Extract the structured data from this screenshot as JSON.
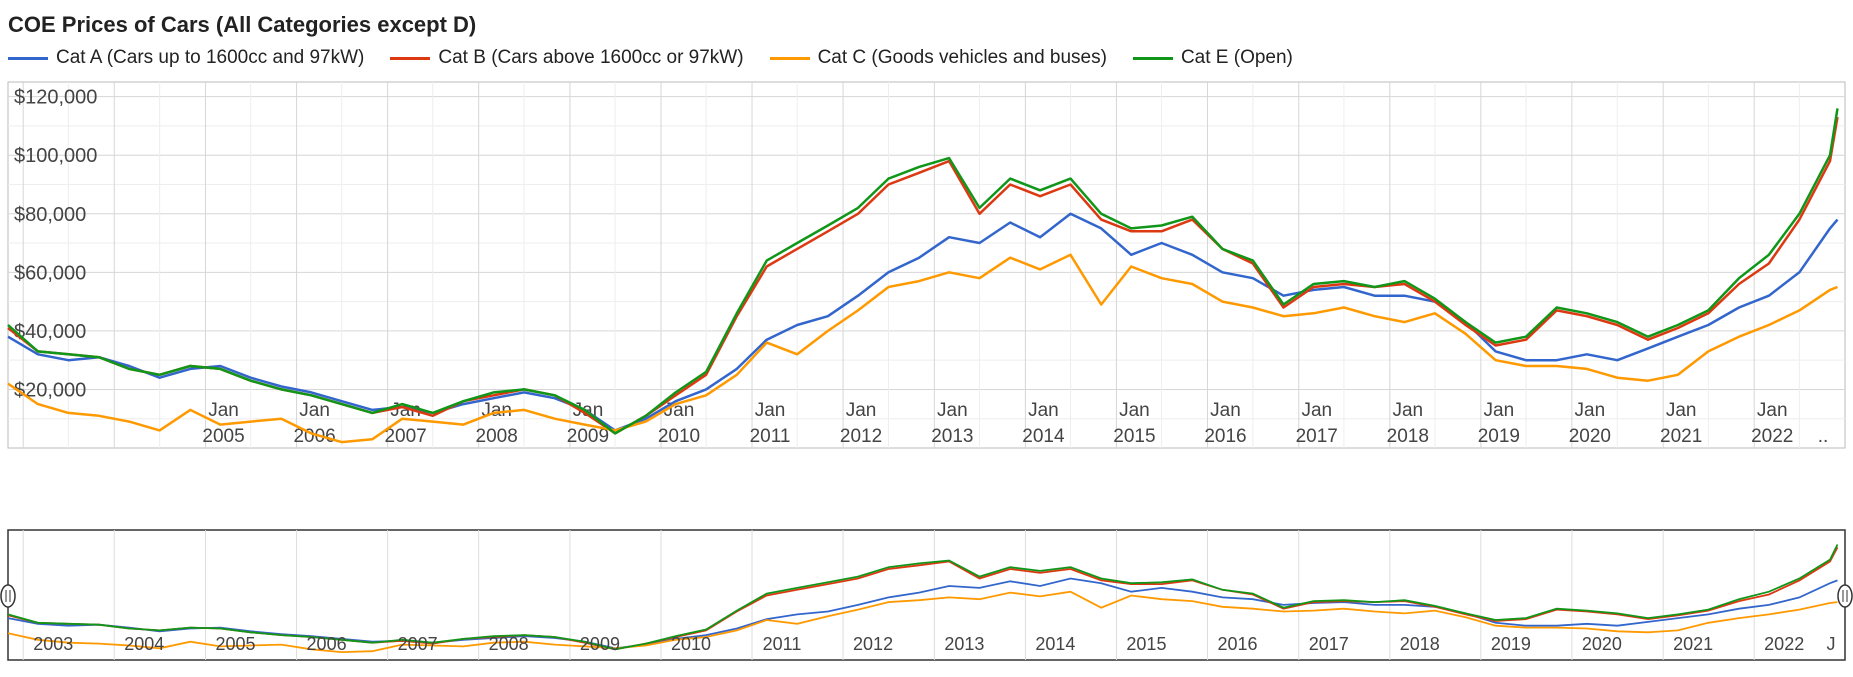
{
  "chart_data": {
    "type": "line",
    "title": "COE Prices of Cars (All Categories except D)",
    "xlabel": "",
    "ylabel": "",
    "x_range": [
      "2002-11",
      "2022-12"
    ],
    "ylim": [
      0,
      125000
    ],
    "y_ticks": [
      "$20,000",
      "$40,000",
      "$60,000",
      "$80,000",
      "$100,000",
      "$120,000"
    ],
    "y_tick_values": [
      20000,
      40000,
      60000,
      80000,
      100000,
      120000
    ],
    "x_tick_top": [
      "Jan",
      "Jan",
      "Jan",
      "Jan",
      "Jan",
      "Jan",
      "Jan",
      "Jan",
      "Jan",
      "Jan",
      "Jan",
      "Jan",
      "Jan",
      "Jan",
      "Jan",
      "Jan",
      "Jan",
      "Jan"
    ],
    "x_tick_years": [
      "2005",
      "2006",
      "2007",
      "2008",
      "2009",
      "2010",
      "2011",
      "2012",
      "2013",
      "2014",
      "2015",
      "2016",
      "2017",
      "2018",
      "2019",
      "2020",
      "2021",
      "2022",
      ".."
    ],
    "navigator_years": [
      "2003",
      "2004",
      "2005",
      "2006",
      "2007",
      "2008",
      "2009",
      "2010",
      "2011",
      "2012",
      "2013",
      "2014",
      "2015",
      "2016",
      "2017",
      "2018",
      "2019",
      "2020",
      "2021",
      "2022",
      "J"
    ],
    "grid": true,
    "legend_position": "top-left",
    "x": [
      "2002-11",
      "2003-03",
      "2003-07",
      "2003-11",
      "2004-03",
      "2004-07",
      "2004-11",
      "2005-03",
      "2005-07",
      "2005-11",
      "2006-03",
      "2006-07",
      "2006-11",
      "2007-03",
      "2007-07",
      "2007-11",
      "2008-03",
      "2008-07",
      "2008-11",
      "2009-03",
      "2009-07",
      "2009-11",
      "2010-03",
      "2010-07",
      "2010-11",
      "2011-03",
      "2011-07",
      "2011-11",
      "2012-03",
      "2012-07",
      "2012-11",
      "2013-03",
      "2013-07",
      "2013-11",
      "2014-03",
      "2014-07",
      "2014-11",
      "2015-03",
      "2015-07",
      "2015-11",
      "2016-03",
      "2016-07",
      "2016-11",
      "2017-03",
      "2017-07",
      "2017-11",
      "2018-03",
      "2018-07",
      "2018-11",
      "2019-03",
      "2019-07",
      "2019-11",
      "2020-03",
      "2020-07",
      "2020-11",
      "2021-03",
      "2021-07",
      "2021-11",
      "2022-03",
      "2022-07",
      "2022-11",
      "2022-12"
    ],
    "series": [
      {
        "name": "Cat A (Cars up to 1600cc and 97kW)",
        "color": "#3366cc",
        "values": [
          38000,
          32000,
          30000,
          31000,
          28000,
          24000,
          27000,
          28000,
          24000,
          21000,
          19000,
          16000,
          13000,
          14000,
          12000,
          15000,
          17000,
          19000,
          17000,
          13000,
          6000,
          10000,
          16000,
          20000,
          27000,
          37000,
          42000,
          45000,
          52000,
          60000,
          65000,
          72000,
          70000,
          77000,
          72000,
          80000,
          75000,
          66000,
          70000,
          66000,
          60000,
          58000,
          52000,
          54000,
          55000,
          52000,
          52000,
          50000,
          43000,
          33000,
          30000,
          30000,
          32000,
          30000,
          34000,
          38000,
          42000,
          48000,
          52000,
          60000,
          75000,
          78000
        ]
      },
      {
        "name": "Cat B (Cars above 1600cc or 97kW)",
        "color": "#dc3912",
        "values": [
          41000,
          33000,
          32000,
          31000,
          27000,
          25000,
          28000,
          27000,
          23000,
          20000,
          18000,
          15000,
          12000,
          14000,
          11000,
          16000,
          18000,
          20000,
          18000,
          12000,
          5000,
          11000,
          18000,
          25000,
          45000,
          62000,
          68000,
          74000,
          80000,
          90000,
          94000,
          98000,
          80000,
          90000,
          86000,
          90000,
          78000,
          74000,
          74000,
          78000,
          68000,
          63000,
          48000,
          55000,
          56000,
          55000,
          56000,
          50000,
          42000,
          35000,
          37000,
          47000,
          45000,
          42000,
          37000,
          41000,
          46000,
          56000,
          63000,
          78000,
          98000,
          113000
        ]
      },
      {
        "name": "Cat C (Goods vehicles and buses)",
        "color": "#ff9900",
        "values": [
          22000,
          15000,
          12000,
          11000,
          9000,
          6000,
          13000,
          8000,
          9000,
          10000,
          5000,
          2000,
          3000,
          10000,
          9000,
          8000,
          12000,
          13000,
          10000,
          8000,
          6000,
          9000,
          15000,
          18000,
          25000,
          36000,
          32000,
          40000,
          47000,
          55000,
          57000,
          60000,
          58000,
          65000,
          61000,
          66000,
          49000,
          62000,
          58000,
          56000,
          50000,
          48000,
          45000,
          46000,
          48000,
          45000,
          43000,
          46000,
          39000,
          30000,
          28000,
          28000,
          27000,
          24000,
          23000,
          25000,
          33000,
          38000,
          42000,
          47000,
          54000,
          55000
        ]
      },
      {
        "name": "Cat E (Open)",
        "color": "#109618",
        "values": [
          42000,
          33000,
          32000,
          31000,
          27000,
          25000,
          28000,
          27000,
          23000,
          20000,
          18000,
          15000,
          12000,
          15000,
          12000,
          16000,
          19000,
          20000,
          18000,
          13000,
          5000,
          11000,
          19000,
          26000,
          46000,
          64000,
          70000,
          76000,
          82000,
          92000,
          96000,
          99000,
          82000,
          92000,
          88000,
          92000,
          80000,
          75000,
          76000,
          79000,
          68000,
          64000,
          49000,
          56000,
          57000,
          55000,
          57000,
          51000,
          43000,
          36000,
          38000,
          48000,
          46000,
          43000,
          38000,
          42000,
          47000,
          58000,
          66000,
          80000,
          100000,
          116000
        ]
      }
    ]
  }
}
